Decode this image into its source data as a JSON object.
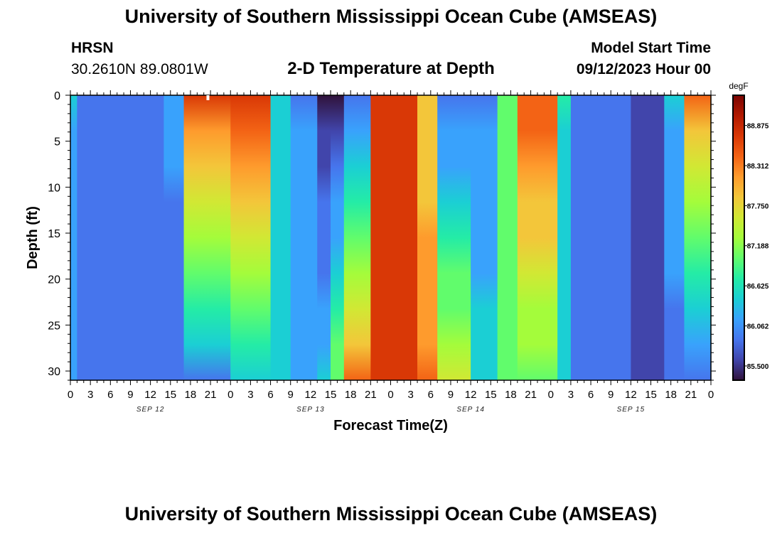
{
  "title": "University of Southern Mississippi Ocean Cube (AMSEAS)",
  "station": {
    "name": "HRSN",
    "coords": "30.2610N  89.0801W"
  },
  "plot_title": "2-D Temperature at Depth",
  "model": {
    "label": "Model Start Time",
    "start": "09/12/2023 Hour 00"
  },
  "footer_title": "University of Southern Mississippi Ocean Cube (AMSEAS)",
  "chart_data": {
    "type": "heatmap",
    "title": "2-D Temperature at Depth",
    "xlabel": "Forecast Time(Z)",
    "ylabel": "Depth (ft)",
    "units": "degF",
    "xlim": [
      0,
      96
    ],
    "ylim": [
      31,
      0
    ],
    "x_tick_hours": [
      0,
      3,
      6,
      9,
      12,
      15,
      18,
      21,
      24,
      27,
      30,
      33,
      36,
      39,
      42,
      45,
      48,
      51,
      54,
      57,
      60,
      63,
      66,
      69,
      72,
      75,
      78,
      81,
      84,
      87,
      90,
      93,
      96
    ],
    "x_tick_labels": [
      "0",
      "3",
      "6",
      "9",
      "12",
      "15",
      "18",
      "21",
      "0",
      "3",
      "6",
      "9",
      "12",
      "15",
      "18",
      "21",
      "0",
      "3",
      "6",
      "9",
      "12",
      "15",
      "18",
      "21",
      "0",
      "3",
      "6",
      "9",
      "12",
      "15",
      "18",
      "21",
      "0"
    ],
    "date_labels": [
      {
        "label": "SEP 12",
        "hour": 12
      },
      {
        "label": "SEP 13",
        "hour": 36
      },
      {
        "label": "SEP 14",
        "hour": 60
      },
      {
        "label": "SEP 15",
        "hour": 84
      }
    ],
    "y_ticks": [
      0,
      5,
      10,
      15,
      20,
      25,
      30
    ],
    "y_tick_labels": [
      "0",
      "5",
      "10",
      "15",
      "20",
      "25",
      "30"
    ],
    "colorbar": {
      "min": 85.3,
      "max": 89.3,
      "ticks": [
        85.5,
        86.062,
        86.625,
        87.188,
        87.75,
        88.312,
        88.875
      ],
      "tick_labels": [
        "85.500",
        "86.062",
        "86.625",
        "87.188",
        "87.750",
        "88.312",
        "88.875"
      ],
      "colors": [
        "#30123b",
        "#4145ab",
        "#4675ed",
        "#39a2fc",
        "#1bcfd4",
        "#24eca6",
        "#61fc6c",
        "#a4fc3b",
        "#d1e834",
        "#f3c63a",
        "#fe9b2d",
        "#f36315",
        "#d93806",
        "#b11901",
        "#7a0402"
      ]
    },
    "bands": [
      {
        "hours": [
          0,
          1
        ],
        "top": 86.3,
        "bottom": 86.1
      },
      {
        "hours": [
          1,
          3
        ],
        "top": 86.0,
        "bottom": 85.95
      },
      {
        "hours": [
          3,
          10
        ],
        "top": 85.95,
        "bottom": 85.9
      },
      {
        "hours": [
          10,
          14
        ],
        "top": 85.8,
        "bottom": 85.78
      },
      {
        "hours": [
          14,
          17
        ],
        "top": 86.1,
        "bottom": 85.85
      },
      {
        "hours": [
          17,
          24
        ],
        "top": 88.6,
        "bottom": 86.0
      },
      {
        "hours": [
          24,
          30
        ],
        "top": 88.7,
        "bottom": 86.3
      },
      {
        "hours": [
          30,
          33
        ],
        "top": 86.4,
        "bottom": 86.3
      },
      {
        "hours": [
          33,
          37
        ],
        "top": 86.0,
        "bottom": 86.25
      },
      {
        "hours": [
          37,
          39
        ],
        "top": 85.4,
        "bottom": 86.3
      },
      {
        "hours": [
          39,
          41
        ],
        "top": 85.4,
        "bottom": 87.1
      },
      {
        "hours": [
          41,
          45
        ],
        "top": 85.9,
        "bottom": 88.3
      },
      {
        "hours": [
          45,
          49
        ],
        "top": 88.6,
        "bottom": 88.7
      },
      {
        "hours": [
          49,
          52
        ],
        "top": 88.8,
        "bottom": 88.6
      },
      {
        "hours": [
          52,
          55
        ],
        "top": 87.8,
        "bottom": 88.3
      },
      {
        "hours": [
          55,
          60
        ],
        "top": 85.8,
        "bottom": 87.6
      },
      {
        "hours": [
          60,
          64
        ],
        "top": 86.0,
        "bottom": 86.4
      },
      {
        "hours": [
          64,
          67
        ],
        "top": 86.9,
        "bottom": 86.95
      },
      {
        "hours": [
          67,
          73
        ],
        "top": 88.5,
        "bottom": 87.0
      },
      {
        "hours": [
          73,
          75
        ],
        "top": 86.6,
        "bottom": 86.4
      },
      {
        "hours": [
          75,
          77
        ],
        "top": 86.0,
        "bottom": 86.0
      },
      {
        "hours": [
          77,
          84
        ],
        "top": 85.85,
        "bottom": 85.85
      },
      {
        "hours": [
          84,
          89
        ],
        "top": 85.6,
        "bottom": 85.7
      },
      {
        "hours": [
          89,
          92
        ],
        "top": 86.3,
        "bottom": 85.9
      },
      {
        "hours": [
          92,
          96
        ],
        "top": 88.3,
        "bottom": 85.95
      }
    ]
  }
}
